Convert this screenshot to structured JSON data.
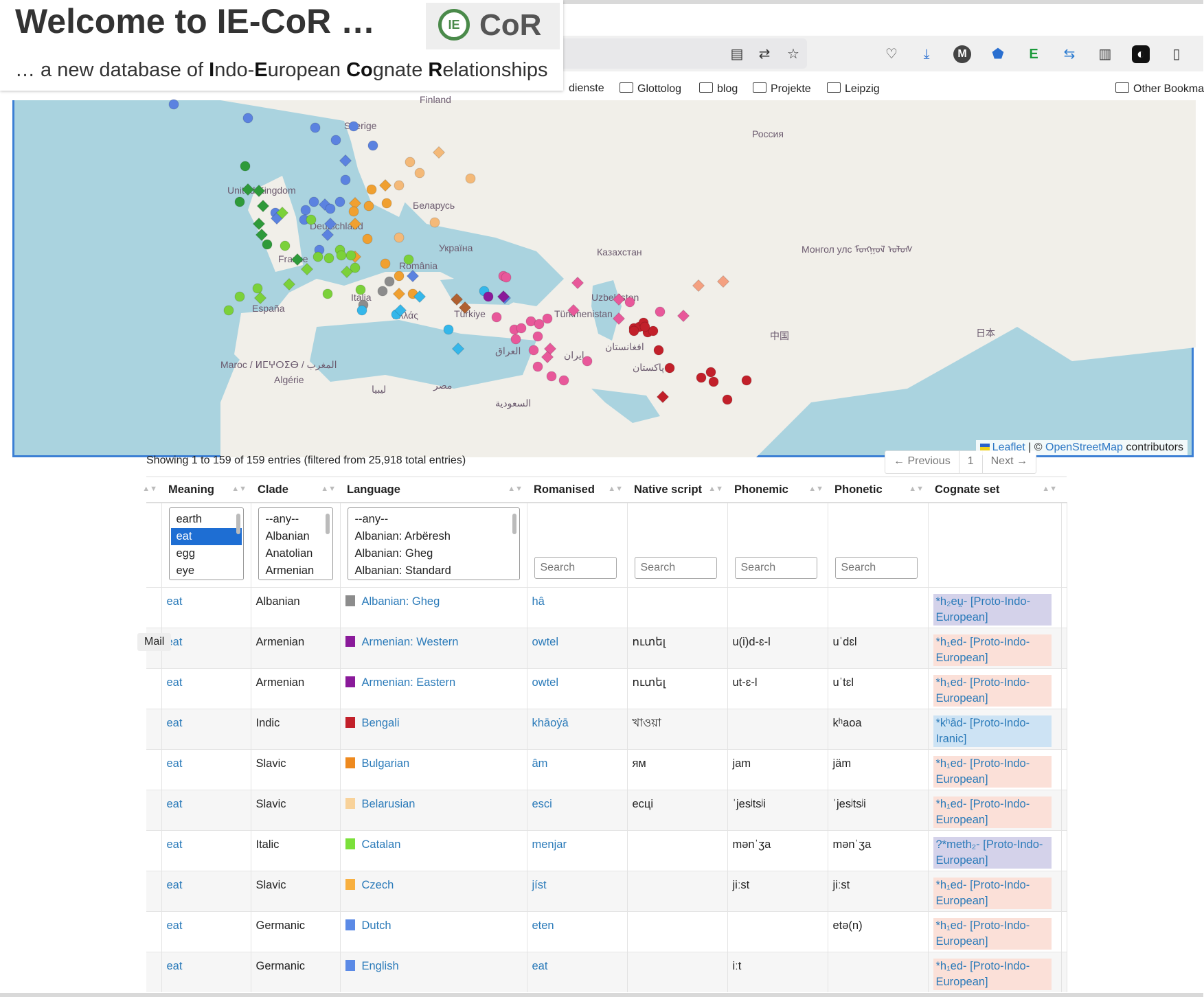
{
  "header": {
    "title": "Welcome to IE-CoR …",
    "logo_icon_text": "IE",
    "logo_text": "CoR",
    "subtitle_parts": [
      "… a new database of ",
      "I",
      "ndo-",
      "E",
      "uropean ",
      "Co",
      "gnate ",
      "R",
      "elationships"
    ]
  },
  "browser": {
    "bookmarks": [
      "dienste",
      "Glottolog",
      "blog",
      "Projekte",
      "Leipzig",
      "Other Bookma"
    ],
    "toolbar_icon_m": "M",
    "toolbar_icon_e": "E"
  },
  "map": {
    "labels": [
      "Sverige",
      "United Kingdom",
      "Deutschland",
      "France",
      "España",
      "România",
      "Україна",
      "Беларусь",
      "Россия",
      "Казахстан",
      "Монгол улс ᠮᠣᠩᠭᠣᠯ ᠤᠯᠤᠰ",
      "Uzbekiston",
      "Türkmenistan",
      "Türkiye",
      "Ελλάς",
      "Italia",
      "Maroc / ⵍⵎⵖⵔⵉⴱ / المغرب",
      "Algérie",
      "ليبيا",
      "مصر",
      "السعودية",
      "العراق",
      "ایران",
      "افغانستان",
      "پاکستان",
      "中国",
      "日本",
      "Finland"
    ],
    "attribution_leaflet": "Leaflet",
    "attribution_sep": " | © ",
    "attribution_osm": "OpenStreetMap",
    "attribution_suffix": " contributors",
    "marker_colors": {
      "celtic": "#2e9a3a",
      "germanic": "#5b82e0",
      "italic": "#7bd13a",
      "slavic": "#f4b978",
      "baltic": "#f0a030",
      "albanian": "#8c8c8c",
      "greek": "#35b7ea",
      "armenian": "#8a1a9a",
      "iranian": "#e8589a",
      "indic": "#c2202a",
      "tocharian": "#f4a080",
      "anatolian": "#b06030"
    }
  },
  "table": {
    "info": "Showing 1 to 159 of 159 entries (filtered from 25,918 total entries)",
    "pager": {
      "prev": "← Previous",
      "page": "1",
      "next": "Next →"
    },
    "columns": [
      "Meaning",
      "Clade",
      "Language",
      "Romanised",
      "Native script",
      "Phonemic",
      "Phonetic",
      "Cognate set"
    ],
    "filters": {
      "meaning_options": [
        "earth",
        "eat",
        "egg",
        "eye"
      ],
      "meaning_selected": "eat",
      "clade_options": [
        "--any--",
        "Albanian",
        "Anatolian",
        "Armenian"
      ],
      "language_options": [
        "--any--",
        "Albanian: Arbëresh",
        "Albanian: Gheg",
        "Albanian: Standard"
      ],
      "search_placeholder": "Search"
    },
    "rows": [
      {
        "meaning": "eat",
        "clade": "Albanian",
        "language": "Albanian: Gheg",
        "color": "#8c8c8c",
        "romanised": "hâ",
        "native": "",
        "phonemic": "",
        "phonetic": "",
        "cognate": "*h₂eu̯- [Proto-Indo-European]",
        "cog_bg": "#d4d2ea"
      },
      {
        "meaning": "eat",
        "clade": "Armenian",
        "language": "Armenian: Western",
        "color": "#8a1a9a",
        "romanised": "owtel",
        "native": "ուտել",
        "phonemic": "u(i)d-ɛ-l",
        "phonetic": "uˈdɛl",
        "cognate": "*h₁ed- [Proto-Indo-European]",
        "cog_bg": "#fbe0d8"
      },
      {
        "meaning": "eat",
        "clade": "Armenian",
        "language": "Armenian: Eastern",
        "color": "#8a1a9a",
        "romanised": "owtel",
        "native": "ուտել",
        "phonemic": "ut-ɛ-l",
        "phonetic": "uˈtɛl",
        "cognate": "*h₁ed- [Proto-Indo-European]",
        "cog_bg": "#fbe0d8"
      },
      {
        "meaning": "eat",
        "clade": "Indic",
        "language": "Bengali",
        "color": "#c2202a",
        "romanised": "khāoẏā",
        "native": "খাওয়া",
        "phonemic": "",
        "phonetic": "kʰaoa",
        "cognate": "*kʰād- [Proto-Indo-Iranic]",
        "cog_bg": "#cde3f4"
      },
      {
        "meaning": "eat",
        "clade": "Slavic",
        "language": "Bulgarian",
        "color": "#ee8a1f",
        "romanised": "âm",
        "native": "ям",
        "phonemic": "jam",
        "phonetic": "jäm",
        "cognate": "*h₁ed- [Proto-Indo-European]",
        "cog_bg": "#fbe0d8"
      },
      {
        "meaning": "eat",
        "clade": "Slavic",
        "language": "Belarusian",
        "color": "#f8d29a",
        "romanised": "esci",
        "native": "есці",
        "phonemic": "ˈjesʲtsʲi",
        "phonetic": "ˈjesʲtsʲi",
        "cognate": "*h₁ed- [Proto-Indo-European]",
        "cog_bg": "#fbe0d8"
      },
      {
        "meaning": "eat",
        "clade": "Italic",
        "language": "Catalan",
        "color": "#7be03a",
        "romanised": "menjar",
        "native": "",
        "phonemic": "mənˈʒa",
        "phonetic": "mənˈʒa",
        "cognate": "?*meth₂- [Proto-Indo-European]",
        "cog_bg": "#d4d2ea"
      },
      {
        "meaning": "eat",
        "clade": "Slavic",
        "language": "Czech",
        "color": "#f8b040",
        "romanised": "jíst",
        "native": "",
        "phonemic": "jiːst",
        "phonetic": "jiːst",
        "cognate": "*h₁ed- [Proto-Indo-European]",
        "cog_bg": "#fbe0d8"
      },
      {
        "meaning": "eat",
        "clade": "Germanic",
        "language": "Dutch",
        "color": "#5b8ae6",
        "romanised": "eten",
        "native": "",
        "phonemic": "",
        "phonetic": "etə(n)",
        "cognate": "*h₁ed- [Proto-Indo-European]",
        "cog_bg": "#fbe0d8"
      },
      {
        "meaning": "eat",
        "clade": "Germanic",
        "language": "English",
        "color": "#5b8ae6",
        "romanised": "eat",
        "native": "",
        "phonemic": "iːt",
        "phonetic": "",
        "cognate": "*h₁ed- [Proto-Indo-European]",
        "cog_bg": "#fbe0d8"
      }
    ]
  },
  "tooltip": {
    "mail": "Mail"
  }
}
